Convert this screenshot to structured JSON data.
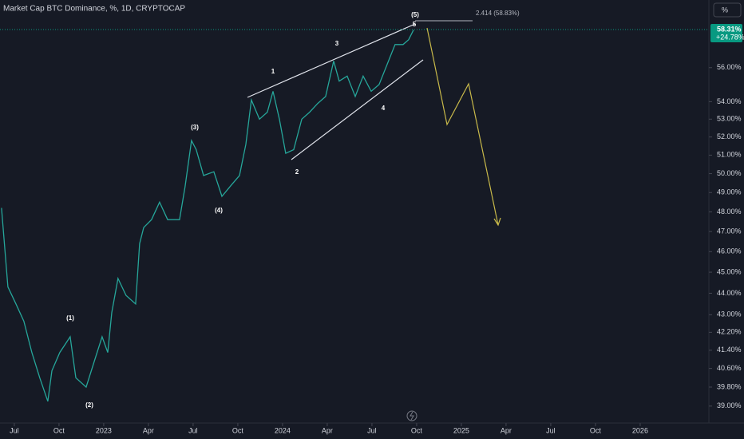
{
  "chart_data": {
    "type": "line",
    "title": "Market Cap BTC Dominance, %, 1D, CRYPTOCAP",
    "scale_button": "%",
    "log_scale": true,
    "last_value_label": "58.31%",
    "change_label": "+24.78%",
    "annotations": [
      "(5)",
      "5",
      "3",
      "1",
      "(3)",
      "4",
      "2",
      "(4)",
      "(1)",
      "(2)",
      "2.414 (58.83%)"
    ],
    "xlim": [
      -0.96,
      46.61
    ],
    "ylim": [
      38.3,
      60.2
    ],
    "xticks": [
      {
        "value": 0,
        "label": "Jul"
      },
      {
        "value": 3,
        "label": "Oct"
      },
      {
        "value": 6,
        "label": "2023"
      },
      {
        "value": 9,
        "label": "Apr"
      },
      {
        "value": 12,
        "label": "Jul"
      },
      {
        "value": 15,
        "label": "Oct"
      },
      {
        "value": 18,
        "label": "2024"
      },
      {
        "value": 21,
        "label": "Apr"
      },
      {
        "value": 24,
        "label": "Jul"
      },
      {
        "value": 27,
        "label": "Oct"
      },
      {
        "value": 30,
        "label": "2025"
      },
      {
        "value": 33,
        "label": "Apr"
      },
      {
        "value": 36,
        "label": "Jul"
      },
      {
        "value": 39,
        "label": "Oct"
      },
      {
        "value": 42,
        "label": "2026"
      }
    ],
    "yticks": [
      {
        "value": 56,
        "label": "56.00%"
      },
      {
        "value": 54,
        "label": "54.00%"
      },
      {
        "value": 53,
        "label": "53.00%"
      },
      {
        "value": 52,
        "label": "52.00%"
      },
      {
        "value": 51,
        "label": "51.00%"
      },
      {
        "value": 50,
        "label": "50.00%"
      },
      {
        "value": 49,
        "label": "49.00%"
      },
      {
        "value": 48,
        "label": "48.00%"
      },
      {
        "value": 47,
        "label": "47.00%"
      },
      {
        "value": 46,
        "label": "46.00%"
      },
      {
        "value": 45,
        "label": "45.00%"
      },
      {
        "value": 44,
        "label": "44.00%"
      },
      {
        "value": 43,
        "label": "43.00%"
      },
      {
        "value": 42.2,
        "label": "42.20%"
      },
      {
        "value": 41.4,
        "label": "41.40%"
      },
      {
        "value": 40.6,
        "label": "40.60%"
      },
      {
        "value": 39.8,
        "label": "39.80%"
      },
      {
        "value": 39,
        "label": "39.00%"
      }
    ],
    "series": [
      {
        "color": "#26a69a",
        "x": [
          -0.86,
          -0.43,
          0.11,
          0.64,
          1.18,
          1.71,
          2.25,
          2.52,
          3.05,
          3.75,
          4.13,
          4.82,
          5.36,
          5.89,
          6.27,
          6.54,
          6.96,
          7.5,
          8.14,
          8.41,
          8.68,
          9.21,
          9.75,
          10.29,
          11.09,
          11.46,
          11.89,
          12.21,
          12.7,
          13.39,
          13.93,
          14.57,
          15.11,
          15.54,
          15.91,
          16.45,
          16.98,
          17.36,
          17.79,
          18.21,
          18.75,
          19.29,
          19.82,
          20.36,
          20.89,
          21.43,
          21.8,
          22.34,
          22.88,
          23.41,
          23.95,
          24.48,
          25.02,
          25.55,
          26.09,
          26.46,
          26.79
        ],
        "values": [
          48.2,
          44.3,
          43.5,
          42.7,
          41.3,
          40.2,
          39.2,
          40.5,
          41.3,
          42.0,
          40.2,
          39.8,
          40.9,
          42.0,
          41.3,
          43.1,
          44.7,
          43.9,
          43.5,
          46.4,
          47.2,
          47.6,
          48.5,
          47.6,
          47.6,
          49.3,
          51.8,
          51.3,
          49.9,
          50.1,
          48.8,
          49.4,
          49.9,
          51.6,
          54.1,
          53.0,
          53.4,
          54.6,
          53.0,
          51.1,
          51.3,
          53.0,
          53.4,
          53.9,
          54.3,
          56.4,
          55.2,
          55.5,
          54.3,
          55.5,
          54.6,
          55.0,
          56.2,
          57.4,
          57.4,
          57.7,
          58.3
        ]
      }
    ]
  }
}
